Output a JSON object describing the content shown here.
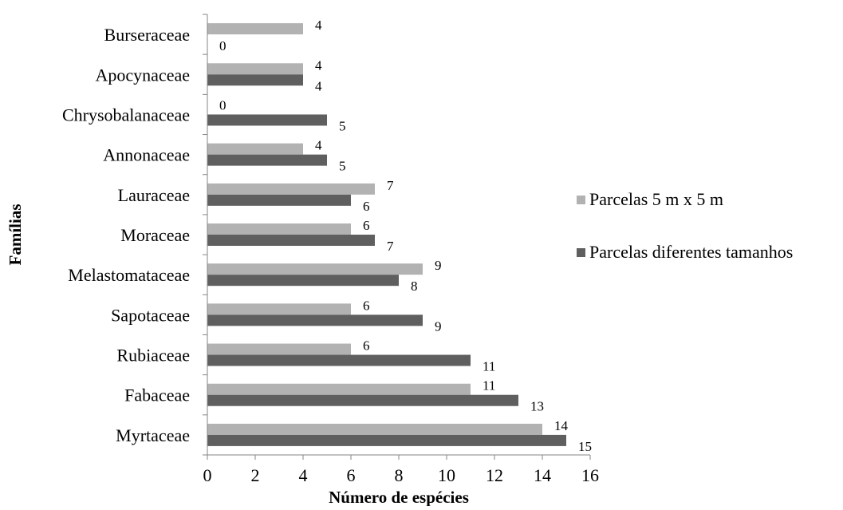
{
  "chart_data": {
    "type": "bar",
    "orientation": "horizontal",
    "title": "",
    "xlabel": "Número de espécies",
    "ylabel": "Famílias",
    "xlim": [
      0,
      16
    ],
    "xticks": [
      0,
      2,
      4,
      6,
      8,
      10,
      12,
      14,
      16
    ],
    "grid": false,
    "legend_position": "right",
    "categories": [
      "Burseraceae",
      "Apocynaceae",
      "Chrysobalanaceae",
      "Annonaceae",
      "Lauraceae",
      "Moraceae",
      "Melastomataceae",
      "Sapotaceae",
      "Rubiaceae",
      "Fabaceae",
      "Myrtaceae"
    ],
    "series": [
      {
        "name": "Parcelas 5 m x 5 m",
        "color": "#b2b2b2",
        "values": [
          4,
          4,
          0,
          4,
          7,
          6,
          9,
          6,
          6,
          11,
          14
        ]
      },
      {
        "name": "Parcelas diferentes tamanhos",
        "color": "#5f5f5f",
        "values": [
          0,
          4,
          5,
          5,
          6,
          7,
          8,
          9,
          11,
          13,
          15
        ]
      }
    ]
  }
}
